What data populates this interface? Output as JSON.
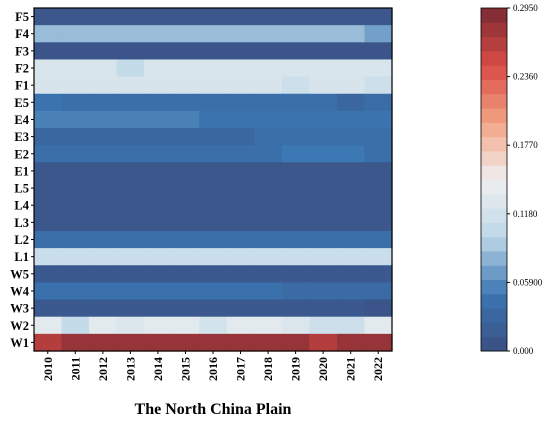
{
  "chart_data": {
    "type": "heatmap",
    "title": "The North China Plain",
    "xlabel": "",
    "ylabel": "",
    "x_categories": [
      "2010",
      "2011",
      "2012",
      "2013",
      "2014",
      "2015",
      "2016",
      "2017",
      "2018",
      "2019",
      "2020",
      "2021",
      "2022"
    ],
    "y_categories": [
      "F5",
      "F4",
      "F3",
      "F2",
      "F1",
      "E5",
      "E4",
      "E3",
      "E2",
      "E1",
      "L5",
      "L4",
      "L3",
      "L2",
      "L1",
      "W5",
      "W4",
      "W3",
      "W2",
      "W1"
    ],
    "values": [
      [
        0.01,
        0.01,
        0.01,
        0.01,
        0.01,
        0.01,
        0.01,
        0.01,
        0.01,
        0.01,
        0.01,
        0.01,
        0.01
      ],
      [
        0.085,
        0.085,
        0.085,
        0.085,
        0.085,
        0.085,
        0.085,
        0.085,
        0.085,
        0.085,
        0.085,
        0.085,
        0.07
      ],
      [
        0.008,
        0.008,
        0.008,
        0.008,
        0.008,
        0.008,
        0.008,
        0.008,
        0.008,
        0.008,
        0.008,
        0.008,
        0.008
      ],
      [
        0.125,
        0.125,
        0.125,
        0.105,
        0.125,
        0.125,
        0.125,
        0.125,
        0.125,
        0.125,
        0.125,
        0.125,
        0.125
      ],
      [
        0.123,
        0.123,
        0.123,
        0.123,
        0.123,
        0.123,
        0.123,
        0.123,
        0.123,
        0.113,
        0.123,
        0.123,
        0.113
      ],
      [
        0.045,
        0.04,
        0.04,
        0.04,
        0.04,
        0.04,
        0.04,
        0.04,
        0.04,
        0.04,
        0.04,
        0.03,
        0.038
      ],
      [
        0.055,
        0.055,
        0.055,
        0.055,
        0.055,
        0.055,
        0.045,
        0.045,
        0.045,
        0.045,
        0.045,
        0.045,
        0.045
      ],
      [
        0.03,
        0.03,
        0.03,
        0.03,
        0.03,
        0.03,
        0.03,
        0.03,
        0.04,
        0.04,
        0.04,
        0.04,
        0.04
      ],
      [
        0.04,
        0.04,
        0.04,
        0.04,
        0.04,
        0.04,
        0.04,
        0.04,
        0.04,
        0.05,
        0.05,
        0.05,
        0.04
      ],
      [
        0.01,
        0.01,
        0.01,
        0.01,
        0.01,
        0.01,
        0.01,
        0.01,
        0.01,
        0.01,
        0.01,
        0.01,
        0.01
      ],
      [
        0.01,
        0.01,
        0.01,
        0.01,
        0.01,
        0.01,
        0.01,
        0.01,
        0.01,
        0.01,
        0.01,
        0.01,
        0.01
      ],
      [
        0.01,
        0.01,
        0.01,
        0.01,
        0.01,
        0.01,
        0.01,
        0.01,
        0.01,
        0.01,
        0.01,
        0.01,
        0.01
      ],
      [
        0.01,
        0.01,
        0.01,
        0.01,
        0.01,
        0.01,
        0.01,
        0.01,
        0.01,
        0.01,
        0.01,
        0.01,
        0.01
      ],
      [
        0.04,
        0.04,
        0.04,
        0.04,
        0.04,
        0.04,
        0.04,
        0.04,
        0.04,
        0.04,
        0.04,
        0.04,
        0.04
      ],
      [
        0.11,
        0.11,
        0.11,
        0.11,
        0.11,
        0.11,
        0.11,
        0.11,
        0.11,
        0.11,
        0.11,
        0.11,
        0.11
      ],
      [
        0.012,
        0.012,
        0.012,
        0.012,
        0.012,
        0.012,
        0.012,
        0.012,
        0.012,
        0.012,
        0.012,
        0.012,
        0.012
      ],
      [
        0.042,
        0.042,
        0.042,
        0.042,
        0.042,
        0.042,
        0.042,
        0.042,
        0.042,
        0.035,
        0.035,
        0.035,
        0.035
      ],
      [
        0.012,
        0.012,
        0.012,
        0.012,
        0.012,
        0.012,
        0.012,
        0.012,
        0.012,
        0.012,
        0.012,
        0.012,
        0.008
      ],
      [
        0.135,
        0.105,
        0.135,
        0.127,
        0.135,
        0.135,
        0.12,
        0.135,
        0.135,
        0.127,
        0.113,
        0.113,
        0.135
      ],
      [
        0.265,
        0.28,
        0.28,
        0.28,
        0.28,
        0.28,
        0.28,
        0.28,
        0.28,
        0.28,
        0.265,
        0.28,
        0.28
      ]
    ],
    "colorbar": {
      "min": 0.0,
      "max": 0.295,
      "ticks": [
        0.0,
        0.059,
        0.118,
        0.177,
        0.236,
        0.295
      ],
      "tick_labels": [
        "0.000",
        "0.05900",
        "0.1180",
        "0.1770",
        "0.2360",
        "0.2950"
      ],
      "colormap": [
        "#3b4f82",
        "#3a76b2",
        "#bdd8e8",
        "#f0f0f0",
        "#f3a384",
        "#d94b45",
        "#7a2a34"
      ]
    },
    "grid": false,
    "legend": "colorbar-right"
  }
}
